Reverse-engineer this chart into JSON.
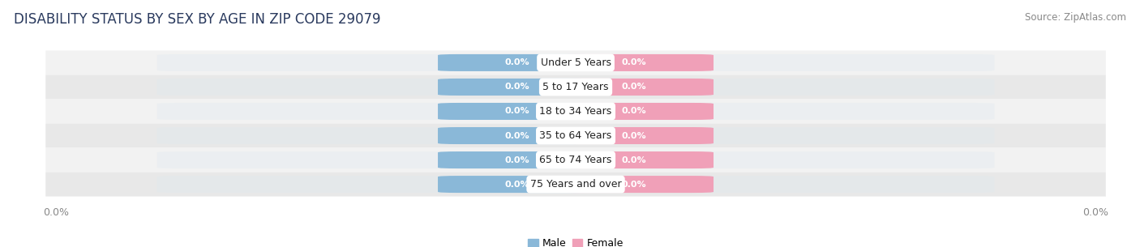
{
  "title": "DISABILITY STATUS BY SEX BY AGE IN ZIP CODE 29079",
  "source": "Source: ZipAtlas.com",
  "categories": [
    "Under 5 Years",
    "5 to 17 Years",
    "18 to 34 Years",
    "35 to 64 Years",
    "65 to 74 Years",
    "75 Years and over"
  ],
  "male_values": [
    0.0,
    0.0,
    0.0,
    0.0,
    0.0,
    0.0
  ],
  "female_values": [
    0.0,
    0.0,
    0.0,
    0.0,
    0.0,
    0.0
  ],
  "male_color": "#8ab8d8",
  "female_color": "#f0a0b8",
  "row_bg_colors": [
    "#f2f2f2",
    "#e8e8e8"
  ],
  "title_fontsize": 12,
  "source_fontsize": 8.5,
  "label_fontsize": 8,
  "category_fontsize": 9,
  "legend_fontsize": 9,
  "background_color": "#ffffff",
  "title_color": "#2a3a5e",
  "source_color": "#888888",
  "tick_color": "#888888"
}
